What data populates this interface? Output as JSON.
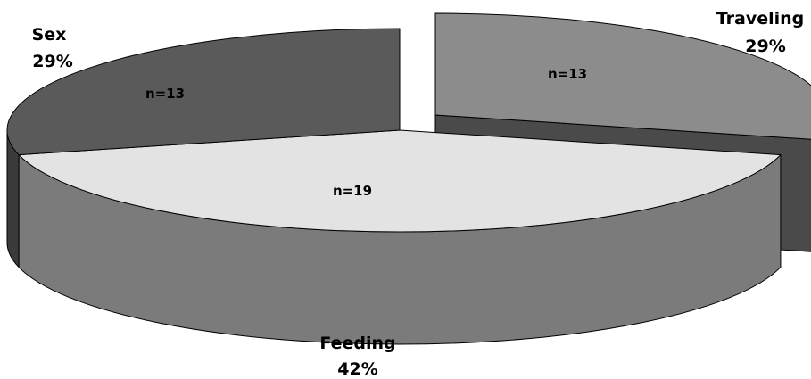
{
  "chart_data": {
    "type": "pie",
    "title": "",
    "slices": [
      {
        "label": "Traveling",
        "percent": "29%",
        "n_label": "n=13",
        "value": 13,
        "exploded": true,
        "top_color": "#8c8c8c",
        "side_color": "#4a4a4a"
      },
      {
        "label": "Feeding",
        "percent": "42%",
        "n_label": "n=19",
        "value": 19,
        "exploded": false,
        "top_color": "#e3e3e3",
        "side_color": "#7b7b7b"
      },
      {
        "label": "Sex",
        "percent": "29%",
        "n_label": "n=13",
        "value": 13,
        "exploded": false,
        "top_color": "#5a5a5a",
        "side_color": "#3a3a3a"
      }
    ],
    "style": {
      "three_d": true,
      "legend": "none",
      "outline_color": "#000000"
    }
  }
}
